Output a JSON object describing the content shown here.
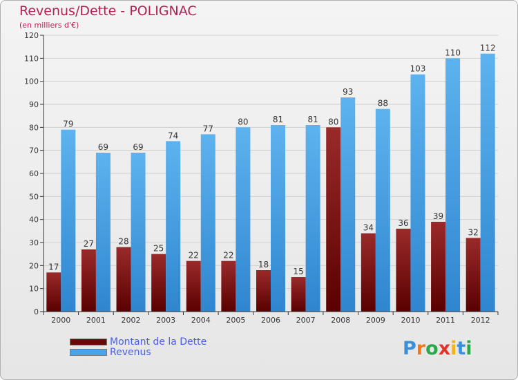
{
  "chart_data": {
    "type": "bar",
    "title": "Revenus/Dette - POLIGNAC",
    "subtitle": "(en milliers d'€)",
    "categories": [
      "2000",
      "2001",
      "2002",
      "2003",
      "2004",
      "2005",
      "2006",
      "2007",
      "2008",
      "2009",
      "2010",
      "2011",
      "2012"
    ],
    "series": [
      {
        "name": "Montant de la Dette",
        "color": "#7a1010",
        "values": [
          17,
          27,
          28,
          25,
          22,
          22,
          18,
          15,
          80,
          34,
          36,
          39,
          32
        ]
      },
      {
        "name": "Revenus",
        "color": "#4aa3e6",
        "values": [
          79,
          69,
          69,
          74,
          77,
          80,
          81,
          81,
          93,
          88,
          103,
          110,
          112
        ]
      }
    ],
    "ylim": [
      0,
      120
    ],
    "yticks": [
      0,
      10,
      20,
      30,
      40,
      50,
      60,
      70,
      80,
      90,
      100,
      110,
      120
    ],
    "grid": true,
    "legend": "bottom-left"
  },
  "logo": {
    "letters": [
      "P",
      "r",
      "o",
      "x",
      "i",
      "t",
      "i"
    ],
    "colors": [
      "#3a8fd8",
      "#f07a1a",
      "#2aa84a",
      "#e0352b",
      "#f2b31a",
      "#3a8fd8",
      "#2aa84a"
    ]
  }
}
